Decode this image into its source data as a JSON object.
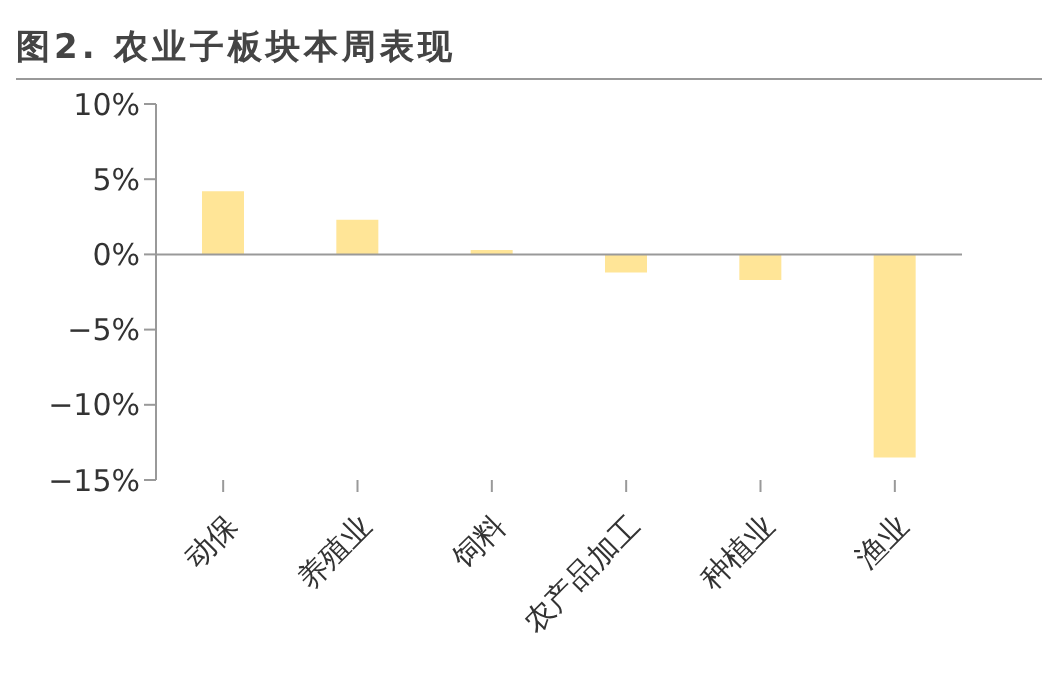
{
  "chart_data": {
    "type": "bar",
    "title": "图2. 农业子板块本周表现",
    "categories": [
      "动保",
      "养殖业",
      "饲料",
      "农产品加工",
      "种植业",
      "渔业"
    ],
    "values": [
      4.2,
      2.3,
      0.3,
      -1.2,
      -1.7,
      -13.5
    ],
    "color": "#ffe597",
    "ylim": [
      -15,
      10
    ],
    "yticks": [
      {
        "value": -15,
        "label": "−15%"
      },
      {
        "value": -10,
        "label": "−10%"
      },
      {
        "value": -5,
        "label": "−5%"
      },
      {
        "value": 0,
        "label": "0%"
      },
      {
        "value": 5,
        "label": "5%"
      },
      {
        "value": 10,
        "label": "10%"
      }
    ],
    "legend": false
  }
}
